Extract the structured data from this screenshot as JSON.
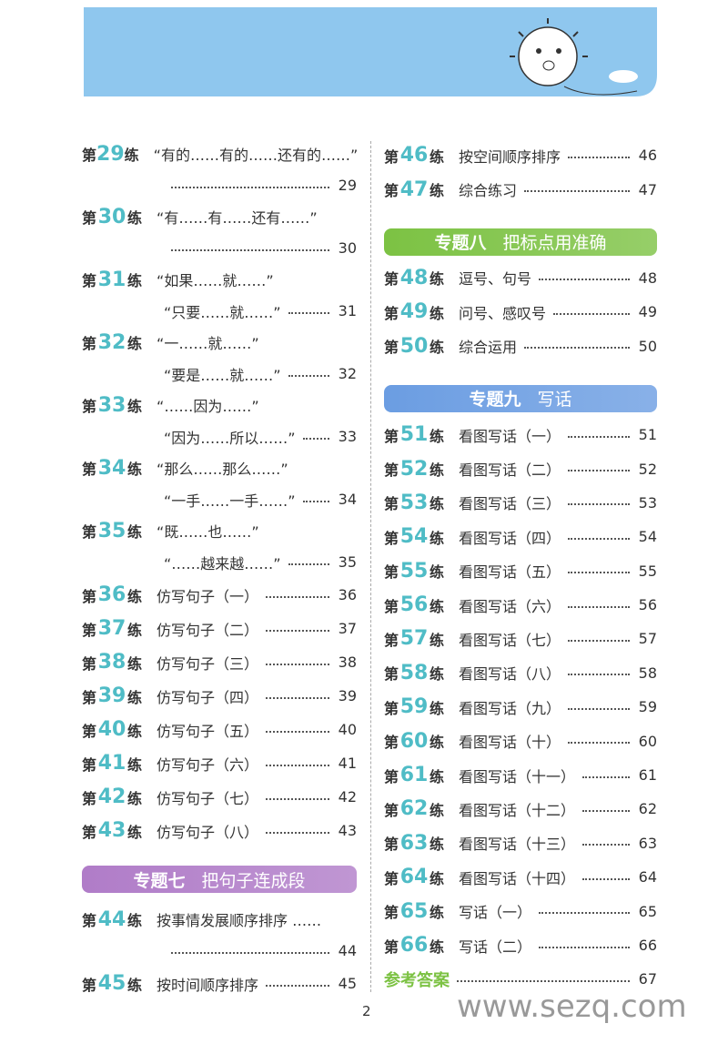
{
  "labels": {
    "pre": "第",
    "post": "练"
  },
  "left": {
    "items": [
      {
        "no": 29,
        "title": "“有的……有的……还有的……”",
        "wrap": true,
        "page": 29
      },
      {
        "no": 30,
        "title": "“有……有……还有……”",
        "wrap": true,
        "page": 30
      },
      {
        "no": 31,
        "title": "“如果……就……”",
        "title2": "“只要……就……”",
        "page": 31
      },
      {
        "no": 32,
        "title": "“一……就……”",
        "title2": "“要是……就……”",
        "page": 32
      },
      {
        "no": 33,
        "title": "“……因为……”",
        "title2": "“因为……所以……”",
        "page": 33
      },
      {
        "no": 34,
        "title": "“那么……那么……”",
        "title2": "“一手……一手……”",
        "page": 34
      },
      {
        "no": 35,
        "title": "“既……也……”",
        "title2": "“……越来越……”",
        "page": 35
      },
      {
        "no": 36,
        "title": "仿写句子（一）",
        "page": 36
      },
      {
        "no": 37,
        "title": "仿写句子（二）",
        "page": 37
      },
      {
        "no": 38,
        "title": "仿写句子（三）",
        "page": 38
      },
      {
        "no": 39,
        "title": "仿写句子（四）",
        "page": 39
      },
      {
        "no": 40,
        "title": "仿写句子（五）",
        "page": 40
      },
      {
        "no": 41,
        "title": "仿写句子（六）",
        "page": 41
      },
      {
        "no": 42,
        "title": "仿写句子（七）",
        "page": 42
      },
      {
        "no": 43,
        "title": "仿写句子（八）",
        "page": 43
      },
      {
        "section": {
          "label": "专题七",
          "title": "把句子连成段",
          "color": "#b07cc8"
        }
      },
      {
        "no": 44,
        "title": "按事情发展顺序排序 ……",
        "wrap": true,
        "page": 44
      },
      {
        "no": 45,
        "title": "按时间顺序排序",
        "page": 45
      }
    ]
  },
  "right": {
    "items": [
      {
        "no": 46,
        "title": "按空间顺序排序",
        "page": 46
      },
      {
        "no": 47,
        "title": "综合练习",
        "page": 47
      },
      {
        "section": {
          "label": "专题八",
          "title": "把标点用准确",
          "color": "#7cc243"
        }
      },
      {
        "no": 48,
        "title": "逗号、句号",
        "page": 48
      },
      {
        "no": 49,
        "title": "问号、感叹号",
        "page": 49
      },
      {
        "no": 50,
        "title": "综合运用",
        "page": 50
      },
      {
        "section": {
          "label": "专题九",
          "title": "写话",
          "color": "#6b9de2"
        }
      },
      {
        "no": 51,
        "title": "看图写话（一）",
        "page": 51
      },
      {
        "no": 52,
        "title": "看图写话（二）",
        "page": 52
      },
      {
        "no": 53,
        "title": "看图写话（三）",
        "page": 53
      },
      {
        "no": 54,
        "title": "看图写话（四）",
        "page": 54
      },
      {
        "no": 55,
        "title": "看图写话（五）",
        "page": 55
      },
      {
        "no": 56,
        "title": "看图写话（六）",
        "page": 56
      },
      {
        "no": 57,
        "title": "看图写话（七）",
        "page": 57
      },
      {
        "no": 58,
        "title": "看图写话（八）",
        "page": 58
      },
      {
        "no": 59,
        "title": "看图写话（九）",
        "page": 59
      },
      {
        "no": 60,
        "title": "看图写话（十）",
        "page": 60
      },
      {
        "no": 61,
        "title": "看图写话（十一）",
        "page": 61
      },
      {
        "no": 62,
        "title": "看图写话（十二）",
        "page": 62
      },
      {
        "no": 63,
        "title": "看图写话（十三）",
        "page": 63
      },
      {
        "no": 64,
        "title": "看图写话（十四）",
        "page": 64
      },
      {
        "no": 65,
        "title": "写话（一）",
        "page": 65
      },
      {
        "no": 66,
        "title": "写话（二）",
        "page": 66
      },
      {
        "answers": "参考答案",
        "page": 67
      }
    ]
  },
  "footer": {
    "page_number": 2,
    "watermark": "www.sezq.com"
  }
}
